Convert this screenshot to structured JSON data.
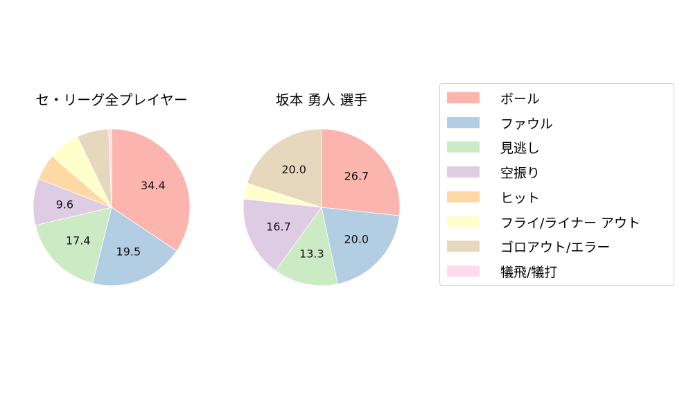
{
  "chart_data": [
    {
      "type": "pie",
      "title": "セ・リーグ全プレイヤー",
      "categories": [
        "ボール",
        "ファウル",
        "見逃し",
        "空振り",
        "ヒット",
        "フライ/ライナー アウト",
        "ゴロアウト/エラー",
        "犠飛/犠打"
      ],
      "values": [
        34.4,
        19.5,
        17.4,
        9.6,
        5.4,
        6.5,
        6.6,
        0.6
      ],
      "labels_shown": [
        "34.4",
        "19.5",
        "17.4",
        "9.6",
        "",
        "",
        "",
        ""
      ]
    },
    {
      "type": "pie",
      "title": "坂本 勇人  選手",
      "categories": [
        "ボール",
        "ファウル",
        "見逃し",
        "空振り",
        "ヒット",
        "フライ/ライナー アウト",
        "ゴロアウト/エラー",
        "犠飛/犠打"
      ],
      "values": [
        26.7,
        20.0,
        13.3,
        16.7,
        0.0,
        3.3,
        20.0,
        0.0
      ],
      "labels_shown": [
        "26.7",
        "20.0",
        "13.3",
        "16.7",
        "",
        "",
        "20.0",
        ""
      ]
    }
  ],
  "titles": {
    "left": "セ・リーグ全プレイヤー",
    "right": "坂本 勇人  選手"
  },
  "legend": {
    "items": [
      {
        "label": "ボール",
        "color": "#fbb4ae"
      },
      {
        "label": "ファウル",
        "color": "#b3cde3"
      },
      {
        "label": "見逃し",
        "color": "#ccebc5"
      },
      {
        "label": "空振り",
        "color": "#decbe4"
      },
      {
        "label": "ヒット",
        "color": "#fed9a6"
      },
      {
        "label": "フライ/ライナー アウト",
        "color": "#ffffcc"
      },
      {
        "label": "ゴロアウト/エラー",
        "color": "#e5d8bd"
      },
      {
        "label": "犠飛/犠打",
        "color": "#fddaec"
      }
    ]
  }
}
